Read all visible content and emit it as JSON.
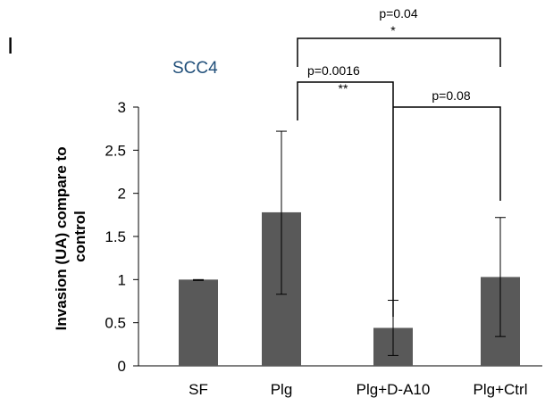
{
  "panel_label": "I",
  "colors": {
    "bar": "#595959",
    "title": "#1f4e79",
    "axis": "#000000"
  },
  "chart_data": {
    "type": "bar",
    "title": "SCC4",
    "ylabel_lines": [
      "Invasion (UA) compare to",
      "control"
    ],
    "xlabel": "",
    "categories": [
      "SF",
      "Plg",
      "Plg+D-A10",
      "Plg+Ctrl"
    ],
    "values": [
      1.0,
      1.78,
      0.44,
      1.03
    ],
    "error_low": [
      0.99,
      0.83,
      0.12,
      0.34
    ],
    "error_high": [
      1.0,
      2.72,
      0.76,
      1.72
    ],
    "ylim": [
      0,
      3
    ],
    "yticks": [
      "0",
      "0.5",
      "1",
      "1.5",
      "2",
      "2.5",
      "3"
    ],
    "grid": false,
    "annotations": [
      {
        "from": 1,
        "to": 3,
        "p": "p=0.04",
        "stars": "*"
      },
      {
        "from": 1,
        "to": 2,
        "p": "p=0.0016",
        "stars": "**"
      },
      {
        "from": 2,
        "to": 3,
        "p": "p=0.08",
        "stars": ""
      }
    ]
  }
}
